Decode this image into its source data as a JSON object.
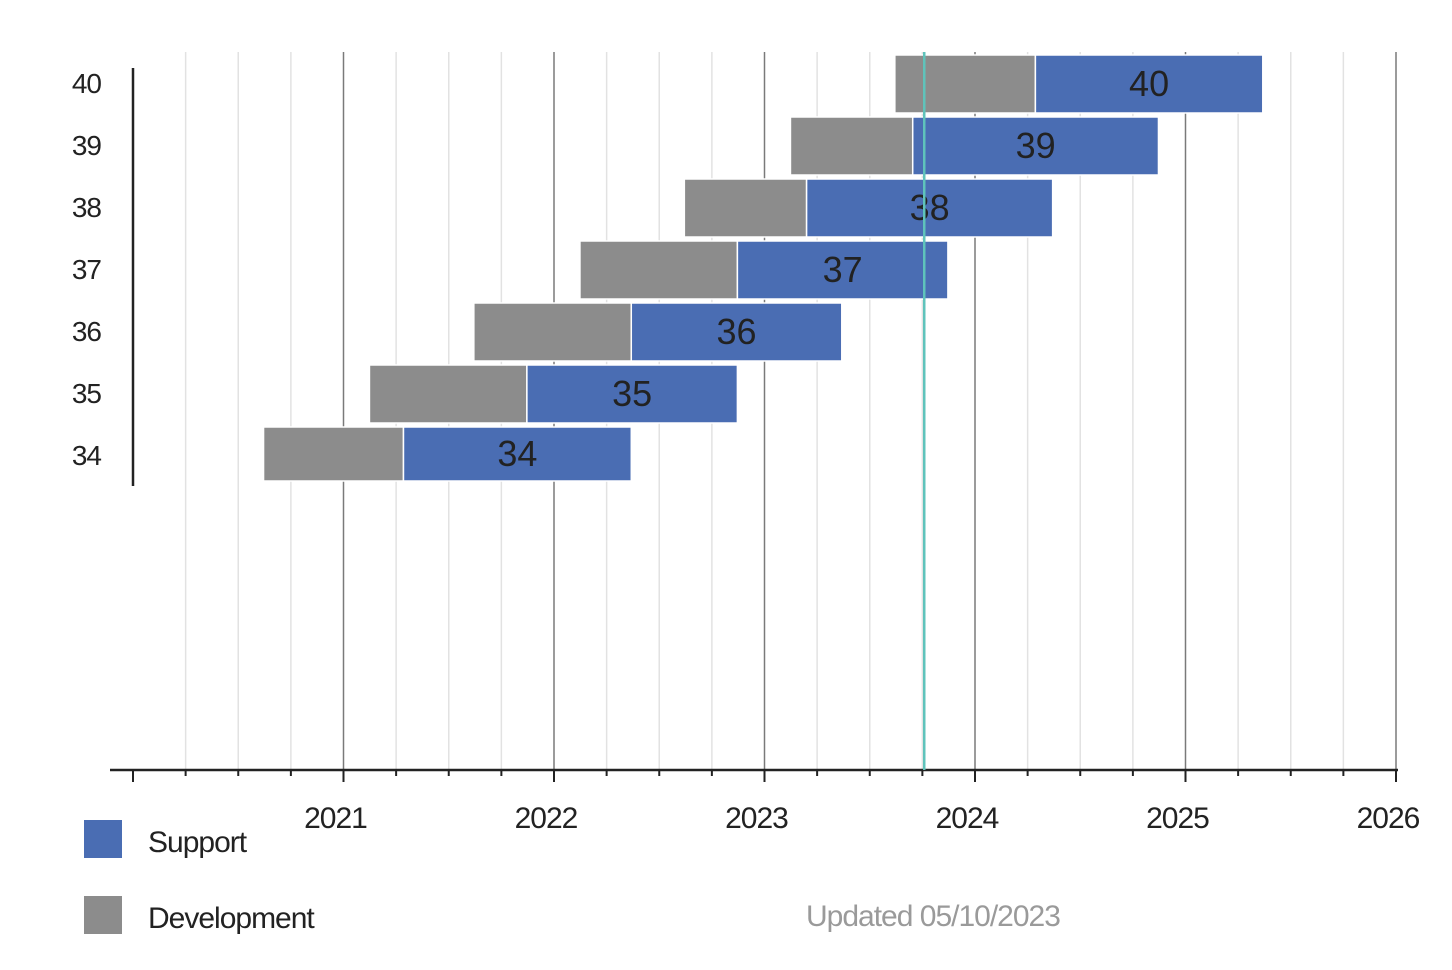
{
  "chart_data": {
    "type": "bar",
    "orientation": "horizontal-stacked-timeline",
    "categories": [
      "34",
      "35",
      "36",
      "37",
      "38",
      "39",
      "40"
    ],
    "x_ticks": [
      "2021",
      "2022",
      "2023",
      "2024",
      "2025",
      "2026"
    ],
    "xlim": [
      "2020-01-01",
      "2026-01-01"
    ],
    "minor_ticks_per_year": 4,
    "grid": true,
    "legend_placement": "bottom-left",
    "series": [
      {
        "name": "Development",
        "color": "#8c8c8c",
        "ranges": [
          [
            "2020-08-15",
            "2021-04-15"
          ],
          [
            "2021-02-15",
            "2021-11-15"
          ],
          [
            "2021-08-15",
            "2022-05-15"
          ],
          [
            "2022-02-15",
            "2022-11-15"
          ],
          [
            "2022-08-15",
            "2023-03-15"
          ],
          [
            "2023-02-15",
            "2023-09-15"
          ],
          [
            "2023-08-15",
            "2024-04-15"
          ]
        ]
      },
      {
        "name": "Support",
        "color": "#4a6db3",
        "ranges": [
          [
            "2021-04-15",
            "2022-05-15"
          ],
          [
            "2021-11-15",
            "2022-11-15"
          ],
          [
            "2022-05-15",
            "2023-05-15"
          ],
          [
            "2022-11-15",
            "2023-11-15"
          ],
          [
            "2023-03-15",
            "2024-05-15"
          ],
          [
            "2023-09-15",
            "2024-11-15"
          ],
          [
            "2024-04-15",
            "2025-05-15"
          ]
        ]
      }
    ],
    "bar_labels": [
      "34",
      "35",
      "36",
      "37",
      "38",
      "39",
      "40"
    ],
    "today_marker": {
      "date": "2023-10-05",
      "color": "#5fc3bb"
    }
  },
  "legend": {
    "support_label": "Support",
    "support_color": "#4a6db3",
    "development_label": "Development",
    "development_color": "#8c8c8c"
  },
  "footer": {
    "updated_text": "Updated 05/10/2023"
  }
}
